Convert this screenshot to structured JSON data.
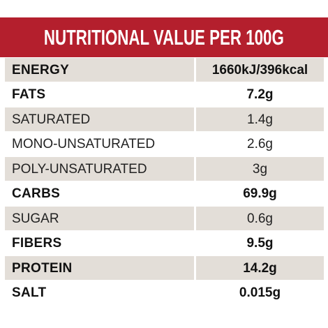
{
  "header": {
    "title": "NUTRITIONAL VALUE PER 100G"
  },
  "colors": {
    "header_bg": "#b41f2d",
    "row_shade": "#e3ded8"
  },
  "rows": [
    {
      "label": "ENERGY",
      "value": "1660kJ/396kcal",
      "bold": true,
      "shaded": true
    },
    {
      "label": "FATS",
      "value": "7.2g",
      "bold": true,
      "shaded": false
    },
    {
      "label": "SATURATED",
      "value": "1.4g",
      "bold": false,
      "shaded": true
    },
    {
      "label": "MONO-UNSATURATED",
      "value": "2.6g",
      "bold": false,
      "shaded": false
    },
    {
      "label": "POLY-UNSATURATED",
      "value": "3g",
      "bold": false,
      "shaded": true
    },
    {
      "label": "CARBS",
      "value": "69.9g",
      "bold": true,
      "shaded": false
    },
    {
      "label": "SUGAR",
      "value": "0.6g",
      "bold": false,
      "shaded": true
    },
    {
      "label": "FIBERS",
      "value": "9.5g",
      "bold": true,
      "shaded": false
    },
    {
      "label": "PROTEIN",
      "value": "14.2g",
      "bold": true,
      "shaded": true
    },
    {
      "label": "SALT",
      "value": "0.015g",
      "bold": true,
      "shaded": false
    }
  ]
}
